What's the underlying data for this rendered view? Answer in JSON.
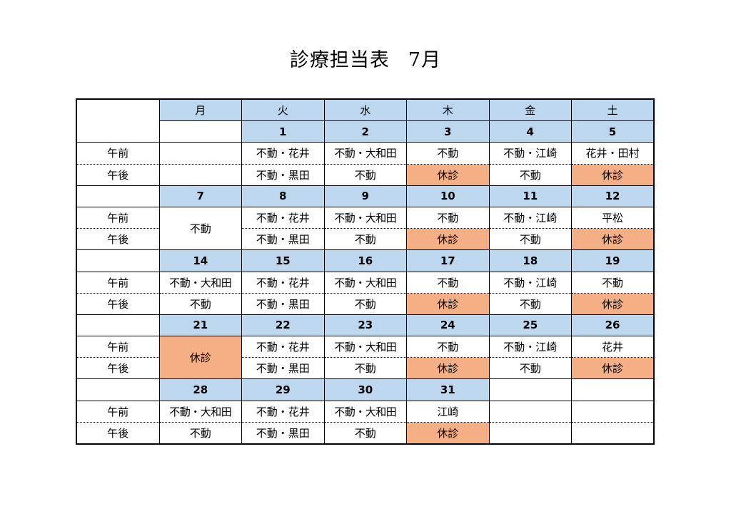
{
  "title": "診療担当表",
  "month": "7月",
  "weekdays": [
    "月",
    "火",
    "水",
    "木",
    "金",
    "土"
  ],
  "am_label": "午前",
  "pm_label": "午後",
  "weeks": [
    {
      "dates": [
        "",
        "1",
        "2",
        "3",
        "4",
        "5"
      ],
      "am": [
        "",
        "不動・花井",
        "不動・大和田",
        "不動",
        "不動・江崎",
        "花井・田村"
      ],
      "pm": [
        "",
        "不動・黒田",
        "不動",
        "休診",
        "不動",
        "休診"
      ]
    },
    {
      "dates": [
        "7",
        "8",
        "9",
        "10",
        "11",
        "12"
      ],
      "mon_merged": "不動",
      "am": [
        "",
        "不動・花井",
        "不動・大和田",
        "不動",
        "不動・江崎",
        "平松"
      ],
      "pm": [
        "",
        "不動・黒田",
        "不動",
        "休診",
        "不動",
        "休診"
      ]
    },
    {
      "dates": [
        "14",
        "15",
        "16",
        "17",
        "18",
        "19"
      ],
      "am": [
        "不動・大和田",
        "不動・花井",
        "不動・大和田",
        "不動",
        "不動・江崎",
        "不動"
      ],
      "pm": [
        "不動",
        "不動・黒田",
        "不動",
        "休診",
        "不動",
        "休診"
      ]
    },
    {
      "dates": [
        "21",
        "22",
        "23",
        "24",
        "25",
        "26"
      ],
      "mon_merged": "休診",
      "am": [
        "",
        "不動・花井",
        "不動・大和田",
        "不動",
        "不動・江崎",
        "花井"
      ],
      "pm": [
        "",
        "不動・黒田",
        "不動",
        "休診",
        "不動",
        "休診"
      ]
    },
    {
      "dates": [
        "28",
        "29",
        "30",
        "31",
        "",
        ""
      ],
      "am": [
        "不動・大和田",
        "不動・花井",
        "不動・大和田",
        "江崎",
        "",
        ""
      ],
      "pm": [
        "不動",
        "不動・黒田",
        "不動",
        "休診",
        "",
        ""
      ]
    }
  ],
  "colors": {
    "header_blue": "#bdd7ee",
    "closed_orange": "#f4b084"
  }
}
